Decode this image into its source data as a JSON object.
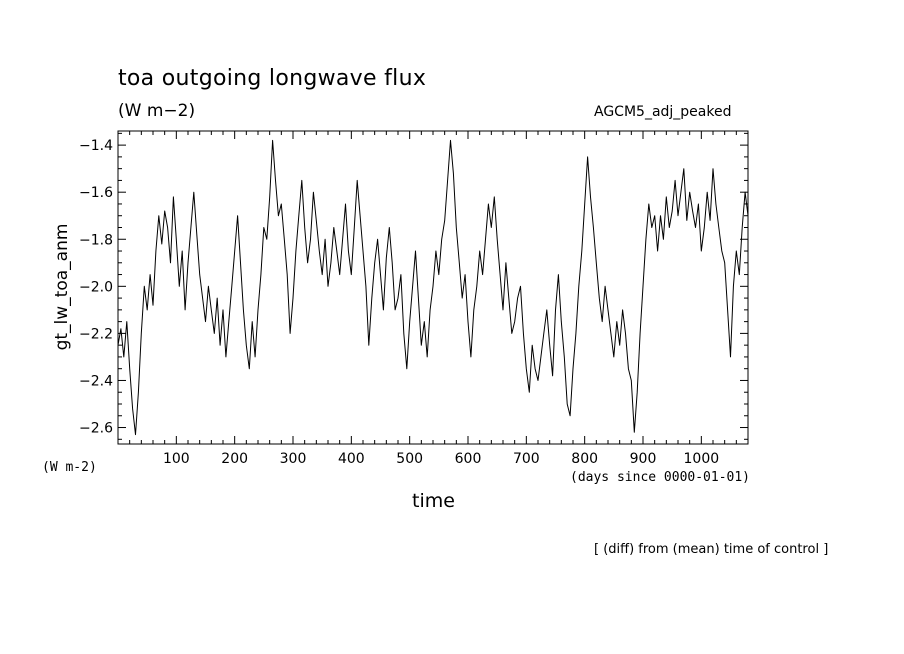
{
  "header": {
    "title": "toa outgoing longwave flux",
    "units": "(W m−2)",
    "experiment": "AGCM5_adj_peaked"
  },
  "axes_text": {
    "ylabel": "gt_lw_toa_anm",
    "y_units_label": "(W m-2)",
    "x_units_label": "(days since 0000-01-01)",
    "xlabel": "time"
  },
  "footer": {
    "note": "[ (diff) from (mean) time of control ]"
  },
  "chart_data": {
    "type": "line",
    "title": "toa outgoing longwave flux",
    "subtitle": "(W m−2)",
    "xlabel": "time",
    "ylabel": "gt_lw_toa_anm",
    "xlim": [
      0,
      1080
    ],
    "ylim": [
      -2.67,
      -1.34
    ],
    "x_ticks": [
      100,
      200,
      300,
      400,
      500,
      600,
      700,
      800,
      900,
      1000
    ],
    "y_ticks": [
      -2.6,
      -2.4,
      -2.2,
      -2.0,
      -1.8,
      -1.6,
      -1.4
    ],
    "y_tick_labels": [
      "−2.6",
      "−2.4",
      "−2.2",
      "−2.0",
      "−1.8",
      "−1.6",
      "−1.4"
    ],
    "grid": false,
    "series": [
      {
        "color": "#000000",
        "x": [
          0,
          5,
          10,
          15,
          20,
          25,
          30,
          35,
          40,
          45,
          50,
          55,
          60,
          65,
          70,
          75,
          80,
          85,
          90,
          95,
          100,
          105,
          110,
          115,
          120,
          125,
          130,
          135,
          140,
          145,
          150,
          155,
          160,
          165,
          170,
          175,
          180,
          185,
          190,
          195,
          200,
          205,
          210,
          215,
          220,
          225,
          230,
          235,
          240,
          245,
          250,
          255,
          260,
          265,
          270,
          275,
          280,
          285,
          290,
          295,
          300,
          305,
          310,
          315,
          320,
          325,
          330,
          335,
          340,
          345,
          350,
          355,
          360,
          365,
          370,
          375,
          380,
          385,
          390,
          395,
          400,
          405,
          410,
          415,
          420,
          425,
          430,
          435,
          440,
          445,
          450,
          455,
          460,
          465,
          470,
          475,
          480,
          485,
          490,
          495,
          500,
          505,
          510,
          515,
          520,
          525,
          530,
          535,
          540,
          545,
          550,
          555,
          560,
          565,
          570,
          575,
          580,
          585,
          590,
          595,
          600,
          605,
          610,
          615,
          620,
          625,
          630,
          635,
          640,
          645,
          650,
          655,
          660,
          665,
          670,
          675,
          680,
          685,
          690,
          695,
          700,
          705,
          710,
          715,
          720,
          725,
          730,
          735,
          740,
          745,
          750,
          755,
          760,
          765,
          770,
          775,
          780,
          785,
          790,
          795,
          800,
          805,
          810,
          815,
          820,
          825,
          830,
          835,
          840,
          845,
          850,
          855,
          860,
          865,
          870,
          875,
          880,
          885,
          890,
          895,
          900,
          905,
          910,
          915,
          920,
          925,
          930,
          935,
          940,
          945,
          950,
          955,
          960,
          965,
          970,
          975,
          980,
          985,
          990,
          995,
          1000,
          1005,
          1010,
          1015,
          1020,
          1025,
          1030,
          1035,
          1040,
          1045,
          1050,
          1055,
          1060,
          1065,
          1070,
          1075,
          1080
        ],
        "y": [
          -2.25,
          -2.18,
          -2.3,
          -2.15,
          -2.35,
          -2.52,
          -2.63,
          -2.45,
          -2.2,
          -2.0,
          -2.1,
          -1.95,
          -2.08,
          -1.85,
          -1.7,
          -1.82,
          -1.68,
          -1.75,
          -1.9,
          -1.62,
          -1.8,
          -2.0,
          -1.85,
          -2.1,
          -1.9,
          -1.75,
          -1.6,
          -1.78,
          -1.95,
          -2.05,
          -2.15,
          -2.0,
          -2.1,
          -2.2,
          -2.05,
          -2.25,
          -2.1,
          -2.3,
          -2.15,
          -2.0,
          -1.85,
          -1.7,
          -1.9,
          -2.1,
          -2.25,
          -2.35,
          -2.15,
          -2.3,
          -2.1,
          -1.95,
          -1.75,
          -1.8,
          -1.62,
          -1.38,
          -1.55,
          -1.7,
          -1.65,
          -1.8,
          -1.95,
          -2.2,
          -2.05,
          -1.85,
          -1.7,
          -1.55,
          -1.75,
          -1.9,
          -1.8,
          -1.6,
          -1.72,
          -1.85,
          -1.95,
          -1.8,
          -2.0,
          -1.9,
          -1.75,
          -1.85,
          -1.95,
          -1.8,
          -1.65,
          -1.85,
          -1.95,
          -1.75,
          -1.55,
          -1.7,
          -1.85,
          -2.0,
          -2.25,
          -2.05,
          -1.9,
          -1.8,
          -1.95,
          -2.1,
          -1.88,
          -1.75,
          -1.9,
          -2.1,
          -2.05,
          -1.95,
          -2.2,
          -2.35,
          -2.15,
          -2.0,
          -1.85,
          -2.05,
          -2.25,
          -2.15,
          -2.3,
          -2.1,
          -2.0,
          -1.85,
          -1.95,
          -1.8,
          -1.72,
          -1.55,
          -1.38,
          -1.52,
          -1.75,
          -1.9,
          -2.05,
          -1.95,
          -2.15,
          -2.3,
          -2.1,
          -2.0,
          -1.85,
          -1.95,
          -1.8,
          -1.65,
          -1.75,
          -1.62,
          -1.8,
          -1.95,
          -2.1,
          -1.9,
          -2.05,
          -2.2,
          -2.15,
          -2.05,
          -2.0,
          -2.2,
          -2.35,
          -2.45,
          -2.25,
          -2.35,
          -2.4,
          -2.3,
          -2.2,
          -2.1,
          -2.25,
          -2.38,
          -2.1,
          -1.95,
          -2.15,
          -2.3,
          -2.5,
          -2.55,
          -2.35,
          -2.2,
          -2.0,
          -1.85,
          -1.65,
          -1.45,
          -1.62,
          -1.75,
          -1.9,
          -2.05,
          -2.15,
          -2.0,
          -2.1,
          -2.2,
          -2.3,
          -2.15,
          -2.25,
          -2.1,
          -2.2,
          -2.35,
          -2.4,
          -2.62,
          -2.45,
          -2.2,
          -2.0,
          -1.8,
          -1.65,
          -1.75,
          -1.7,
          -1.85,
          -1.7,
          -1.8,
          -1.62,
          -1.75,
          -1.68,
          -1.55,
          -1.7,
          -1.6,
          -1.5,
          -1.72,
          -1.6,
          -1.68,
          -1.75,
          -1.65,
          -1.85,
          -1.75,
          -1.6,
          -1.72,
          -1.5,
          -1.65,
          -1.75,
          -1.85,
          -1.9,
          -2.1,
          -2.3,
          -2.0,
          -1.85,
          -1.95,
          -1.75,
          -1.6,
          -1.7
        ]
      }
    ]
  }
}
